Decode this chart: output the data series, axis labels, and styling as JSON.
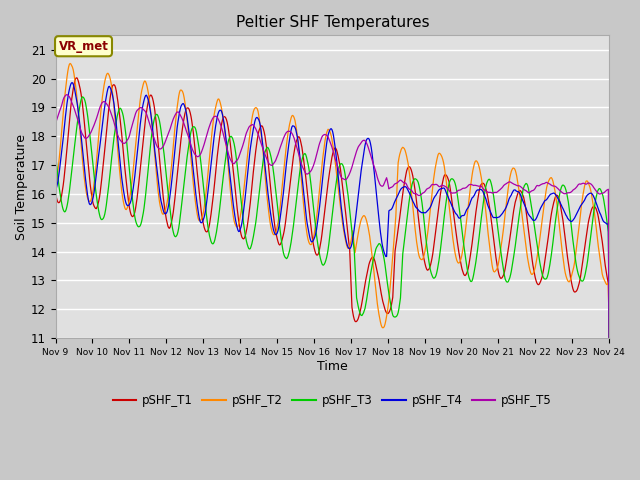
{
  "title": "Peltier SHF Temperatures",
  "xlabel": "Time",
  "ylabel": "Soil Temperature",
  "ylim": [
    11.0,
    21.5
  ],
  "series_colors": {
    "pSHF_T1": "#cc0000",
    "pSHF_T2": "#ff8800",
    "pSHF_T3": "#00cc00",
    "pSHF_T4": "#0000dd",
    "pSHF_T5": "#aa00aa"
  },
  "xtick_labels": [
    "Nov 9",
    "Nov 10",
    "Nov 11",
    "Nov 12",
    "Nov 13",
    "Nov 14",
    "Nov 15",
    "Nov 16",
    "Nov 17",
    "Nov 18",
    "Nov 19",
    "Nov 20",
    "Nov 21",
    "Nov 22",
    "Nov 23",
    "Nov 24"
  ],
  "ytick_values": [
    11.0,
    12.0,
    13.0,
    14.0,
    15.0,
    16.0,
    17.0,
    18.0,
    19.0,
    20.0,
    21.0
  ],
  "annotation_text": "VR_met",
  "fig_facecolor": "#c8c8c8",
  "ax_facecolor": "#e0e0e0",
  "grid_color": "#ffffff",
  "spine_color": "#aaaaaa"
}
